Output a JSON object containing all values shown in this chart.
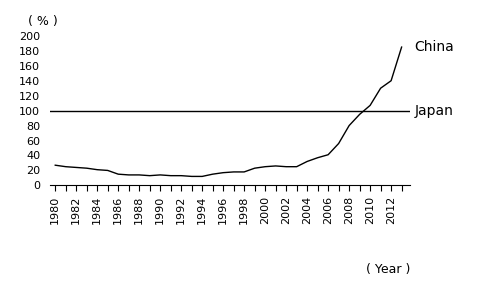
{
  "years": [
    1980,
    1981,
    1982,
    1983,
    1984,
    1985,
    1986,
    1987,
    1988,
    1989,
    1990,
    1991,
    1992,
    1993,
    1994,
    1995,
    1996,
    1997,
    1998,
    1999,
    2000,
    2001,
    2002,
    2003,
    2004,
    2005,
    2006,
    2007,
    2008,
    2009,
    2010,
    2011,
    2012,
    2013
  ],
  "values": [
    27,
    25,
    24,
    23,
    21,
    20,
    15,
    14,
    14,
    13,
    14,
    13,
    13,
    12,
    12,
    15,
    17,
    18,
    18,
    23,
    25,
    26,
    25,
    25,
    32,
    37,
    41,
    56,
    80,
    95,
    107,
    130,
    140,
    185
  ],
  "japan_line": 100,
  "ylim": [
    0,
    200
  ],
  "yticks": [
    0,
    20,
    40,
    60,
    80,
    100,
    120,
    140,
    160,
    180,
    200
  ],
  "xticks_major": [
    1980,
    1982,
    1984,
    1986,
    1988,
    1990,
    1992,
    1994,
    1996,
    1998,
    2000,
    2002,
    2004,
    2006,
    2008,
    2010,
    2012
  ],
  "xticks_minor": [
    1981,
    1983,
    1985,
    1987,
    1989,
    1991,
    1993,
    1995,
    1997,
    1999,
    2001,
    2003,
    2005,
    2007,
    2009,
    2011,
    2013
  ],
  "ylabel_text": "( % )",
  "xlabel_text": "( Year )",
  "china_label": "China",
  "japan_label": "Japan",
  "line_color": "#000000",
  "background_color": "#ffffff",
  "tick_fontsize": 8,
  "label_fontsize": 9,
  "annotation_fontsize": 10
}
